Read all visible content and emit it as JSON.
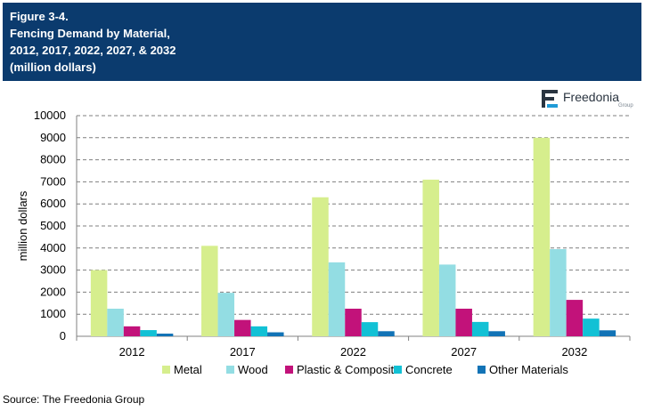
{
  "header": {
    "lines": [
      "Figure 3-4.",
      "Fencing Demand by Material,",
      "2012, 2017, 2022, 2027, & 2032",
      "(million dollars)"
    ]
  },
  "logo": {
    "name": "Freedonia",
    "sub": "Group"
  },
  "source": "Source: The Freedonia Group",
  "colors": {
    "header_bg": "#0b3b6e",
    "grid": "#7f7f7f",
    "axis": "#808080",
    "logo_accent": "#1f9bd7"
  },
  "chart_data": {
    "type": "bar",
    "title": "",
    "xlabel": "",
    "ylabel": "million dollars",
    "ylim": [
      0,
      10000
    ],
    "yticks": [
      0,
      1000,
      2000,
      3000,
      4000,
      5000,
      6000,
      7000,
      8000,
      9000,
      10000
    ],
    "grid": true,
    "legend_position": "bottom",
    "categories": [
      "2012",
      "2017",
      "2022",
      "2027",
      "2032"
    ],
    "series": [
      {
        "name": "Metal",
        "color": "#d6ee8d",
        "values": [
          3000,
          4100,
          6300,
          7100,
          9000
        ]
      },
      {
        "name": "Wood",
        "color": "#93dde3",
        "values": [
          1250,
          1970,
          3350,
          3250,
          3950
        ]
      },
      {
        "name": "Plastic & Composite",
        "color": "#c2127a",
        "values": [
          450,
          740,
          1250,
          1250,
          1650
        ]
      },
      {
        "name": "Concrete",
        "color": "#12c1d5",
        "values": [
          280,
          450,
          640,
          650,
          800
        ]
      },
      {
        "name": "Other Materials",
        "color": "#1273b6",
        "values": [
          120,
          180,
          230,
          230,
          270
        ]
      }
    ]
  }
}
